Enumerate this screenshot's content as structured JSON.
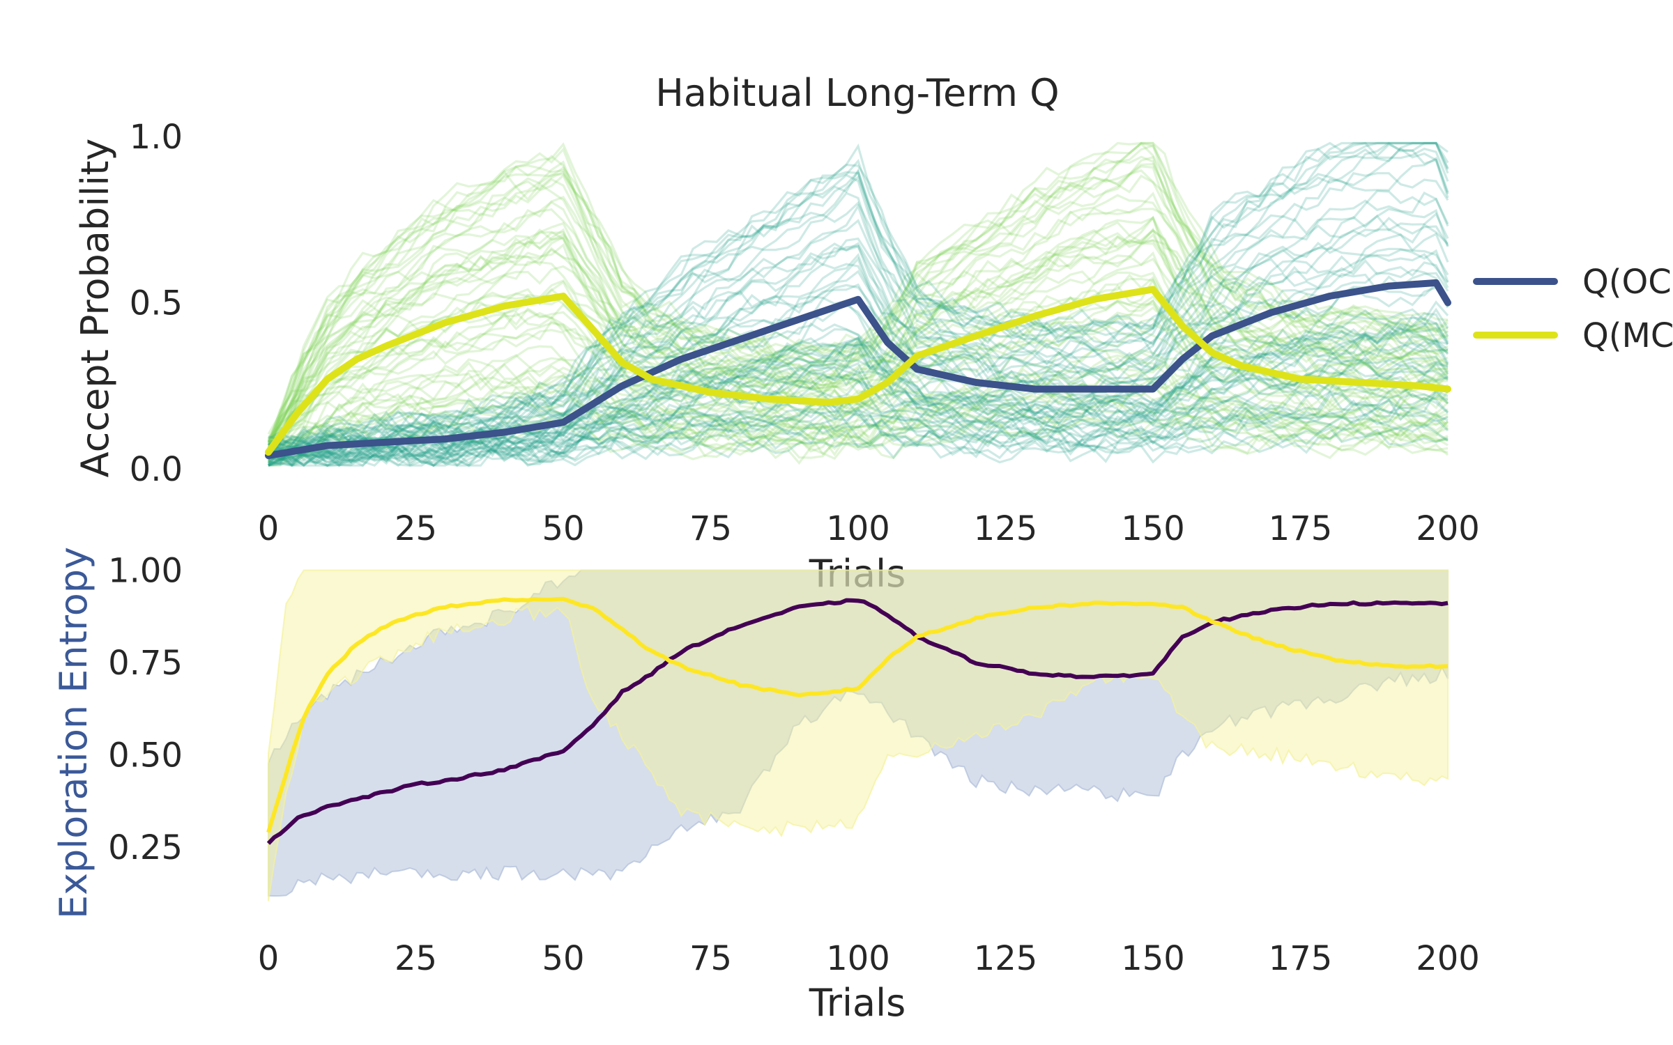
{
  "chart_data": [
    {
      "type": "line",
      "title": "Habitual Long-Term Q",
      "xlabel": "Trials",
      "ylabel": "Accept Probability",
      "xlim": [
        0,
        200
      ],
      "ylim": [
        0,
        1
      ],
      "xticks": [
        "0",
        "25",
        "50",
        "75",
        "100",
        "125",
        "150",
        "175",
        "200"
      ],
      "yticks": [
        "0.0",
        "0.5",
        "1.0"
      ],
      "grid": false,
      "legend_position": "right (clipped)",
      "individual_traces": {
        "description": "many semi-transparent per-subject traces for each series",
        "colors": [
          "#1f9e89",
          "#7ad151"
        ]
      },
      "series": [
        {
          "name": "Q(OC",
          "color": "#3b528b",
          "x": [
            0,
            10,
            20,
            30,
            40,
            50,
            60,
            70,
            80,
            90,
            100,
            105,
            110,
            120,
            130,
            140,
            150,
            155,
            160,
            170,
            180,
            190,
            198,
            200
          ],
          "y": [
            0.04,
            0.07,
            0.08,
            0.09,
            0.11,
            0.14,
            0.25,
            0.33,
            0.39,
            0.45,
            0.51,
            0.38,
            0.3,
            0.26,
            0.24,
            0.24,
            0.24,
            0.33,
            0.4,
            0.47,
            0.52,
            0.55,
            0.56,
            0.5
          ]
        },
        {
          "name": "Q(MC",
          "color": "#dde318",
          "x": [
            0,
            5,
            10,
            15,
            20,
            30,
            40,
            50,
            55,
            60,
            65,
            75,
            85,
            95,
            100,
            105,
            110,
            120,
            130,
            140,
            150,
            155,
            160,
            165,
            175,
            185,
            195,
            200
          ],
          "y": [
            0.05,
            0.17,
            0.27,
            0.33,
            0.37,
            0.44,
            0.49,
            0.52,
            0.42,
            0.32,
            0.27,
            0.23,
            0.21,
            0.2,
            0.21,
            0.26,
            0.34,
            0.4,
            0.46,
            0.51,
            0.54,
            0.43,
            0.35,
            0.31,
            0.27,
            0.26,
            0.25,
            0.24
          ]
        }
      ]
    },
    {
      "type": "line",
      "title": "",
      "xlabel": "Trials",
      "ylabel": "Exploration Entropy",
      "ylabel_color": "#3b5998",
      "xlim": [
        0,
        200
      ],
      "ylim": [
        0.05,
        1.05
      ],
      "xticks": [
        "0",
        "25",
        "50",
        "75",
        "100",
        "125",
        "150",
        "175",
        "200"
      ],
      "yticks": [
        "0.25",
        "0.50",
        "0.75",
        "1.00"
      ],
      "grid": false,
      "series": [
        {
          "color": "#440154",
          "band_color": "#aebed9",
          "x": [
            0,
            5,
            10,
            15,
            20,
            25,
            30,
            40,
            50,
            55,
            60,
            65,
            70,
            80,
            90,
            100,
            105,
            110,
            120,
            130,
            140,
            150,
            155,
            160,
            170,
            180,
            190,
            200
          ],
          "y": [
            0.26,
            0.33,
            0.36,
            0.38,
            0.4,
            0.42,
            0.43,
            0.46,
            0.51,
            0.58,
            0.67,
            0.72,
            0.78,
            0.85,
            0.9,
            0.92,
            0.88,
            0.82,
            0.75,
            0.72,
            0.71,
            0.72,
            0.82,
            0.86,
            0.89,
            0.91,
            0.91,
            0.91
          ],
          "band_low": [
            0.12,
            0.15,
            0.17,
            0.17,
            0.18,
            0.18,
            0.18,
            0.18,
            0.18,
            0.18,
            0.18,
            0.25,
            0.3,
            0.36,
            0.58,
            0.68,
            0.62,
            0.55,
            0.43,
            0.4,
            0.4,
            0.38,
            0.5,
            0.58,
            0.62,
            0.65,
            0.7,
            0.72
          ],
          "band_high": [
            0.48,
            0.6,
            0.66,
            0.72,
            0.76,
            0.8,
            0.84,
            0.88,
            0.98,
            1.0,
            1.0,
            1.0,
            1.0,
            1.0,
            1.0,
            1.0,
            1.0,
            1.0,
            1.0,
            1.0,
            1.0,
            1.0,
            1.0,
            1.0,
            1.0,
            1.0,
            1.0,
            1.0
          ]
        },
        {
          "color": "#fde725",
          "band_color": "#f4f29a",
          "x": [
            0,
            3,
            6,
            10,
            15,
            20,
            25,
            30,
            40,
            50,
            55,
            60,
            65,
            70,
            80,
            90,
            100,
            105,
            110,
            120,
            130,
            140,
            150,
            155,
            160,
            170,
            180,
            190,
            200
          ],
          "y": [
            0.29,
            0.45,
            0.6,
            0.72,
            0.8,
            0.85,
            0.88,
            0.9,
            0.92,
            0.92,
            0.9,
            0.84,
            0.78,
            0.74,
            0.69,
            0.66,
            0.68,
            0.76,
            0.82,
            0.87,
            0.9,
            0.91,
            0.91,
            0.9,
            0.86,
            0.8,
            0.76,
            0.74,
            0.74
          ],
          "band_low": [
            0.12,
            0.4,
            0.6,
            0.66,
            0.72,
            0.76,
            0.8,
            0.84,
            0.87,
            0.9,
            0.65,
            0.55,
            0.45,
            0.35,
            0.3,
            0.3,
            0.32,
            0.5,
            0.5,
            0.55,
            0.6,
            0.7,
            0.72,
            0.6,
            0.52,
            0.5,
            0.48,
            0.44,
            0.43
          ],
          "band_high": [
            0.5,
            0.9,
            1.0,
            1.0,
            1.0,
            1.0,
            1.0,
            1.0,
            1.0,
            1.0,
            1.0,
            1.0,
            1.0,
            1.0,
            1.0,
            1.0,
            1.0,
            1.0,
            1.0,
            1.0,
            1.0,
            1.0,
            1.0,
            1.0,
            1.0,
            1.0,
            1.0,
            1.0,
            1.0
          ]
        }
      ]
    }
  ]
}
